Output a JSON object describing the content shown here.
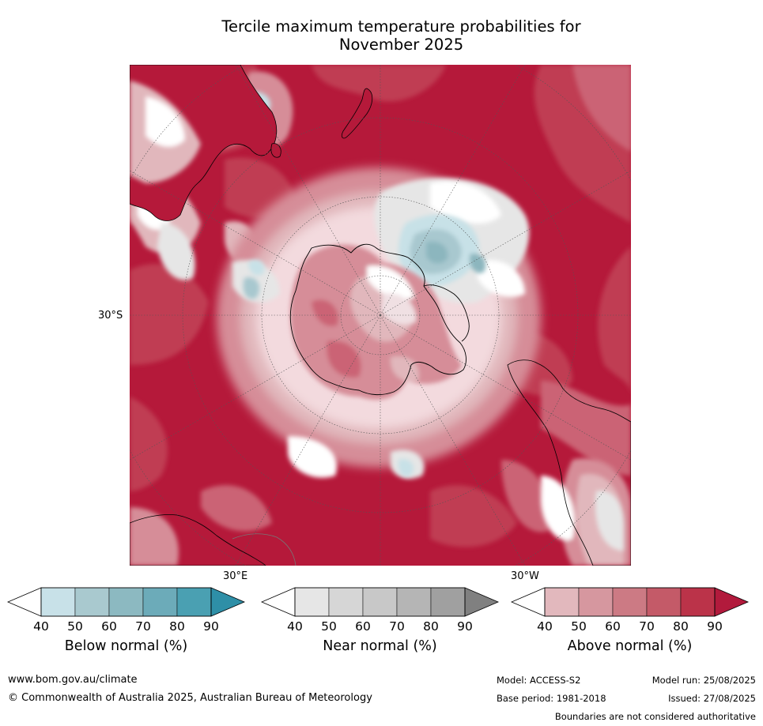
{
  "title_line1": "Tercile maximum temperature probabilities for",
  "title_line2": "November 2025",
  "map": {
    "projection": "south-polar-stereographic",
    "lat_label": "30°S",
    "lon_label_east": "30°E",
    "lon_label_west": "30°W",
    "dominant_category": "above-normal",
    "colors": {
      "above_90": "#b5193a",
      "above_80": "#c03c52",
      "above_70": "#cb6474",
      "above_60": "#d68d98",
      "above_50": "#e1b7bc",
      "white": "#ffffff",
      "near_40": "#e6e6e6",
      "near_50": "#d8d8d8",
      "below_40": "#c7e1e7",
      "below_50": "#a8c8cf",
      "below_60": "#8cb6be"
    }
  },
  "colorbars": [
    {
      "label": "Below normal (%)",
      "ticks": [
        "40",
        "50",
        "60",
        "70",
        "80",
        "90"
      ],
      "colors": [
        "#ffffff",
        "#c8e1e8",
        "#a9c9cf",
        "#8cb9c1",
        "#6cabb9",
        "#4aa0b2",
        "#2e8fa7"
      ]
    },
    {
      "label": "Near normal (%)",
      "ticks": [
        "40",
        "50",
        "60",
        "70",
        "80",
        "90"
      ],
      "colors": [
        "#ffffff",
        "#e6e6e6",
        "#d6d6d6",
        "#c8c8c8",
        "#b5b5b5",
        "#a0a0a0",
        "#808080"
      ]
    },
    {
      "label": "Above normal (%)",
      "ticks": [
        "40",
        "50",
        "60",
        "70",
        "80",
        "90"
      ],
      "colors": [
        "#ffffff",
        "#e2b8bd",
        "#d6979f",
        "#cc7a84",
        "#c45a68",
        "#bb3349",
        "#b21a3c"
      ]
    }
  ],
  "footer": {
    "website": "www.bom.gov.au/climate",
    "copyright": "© Commonwealth of Australia 2025, Australian Bureau of Meteorology",
    "model": "Model: ACCESS-S2",
    "base_period": "Base period: 1981-2018",
    "model_run": "Model run: 25/08/2025",
    "issued": "Issued: 27/08/2025",
    "disclaimer": "Boundaries are not considered authoritative"
  }
}
